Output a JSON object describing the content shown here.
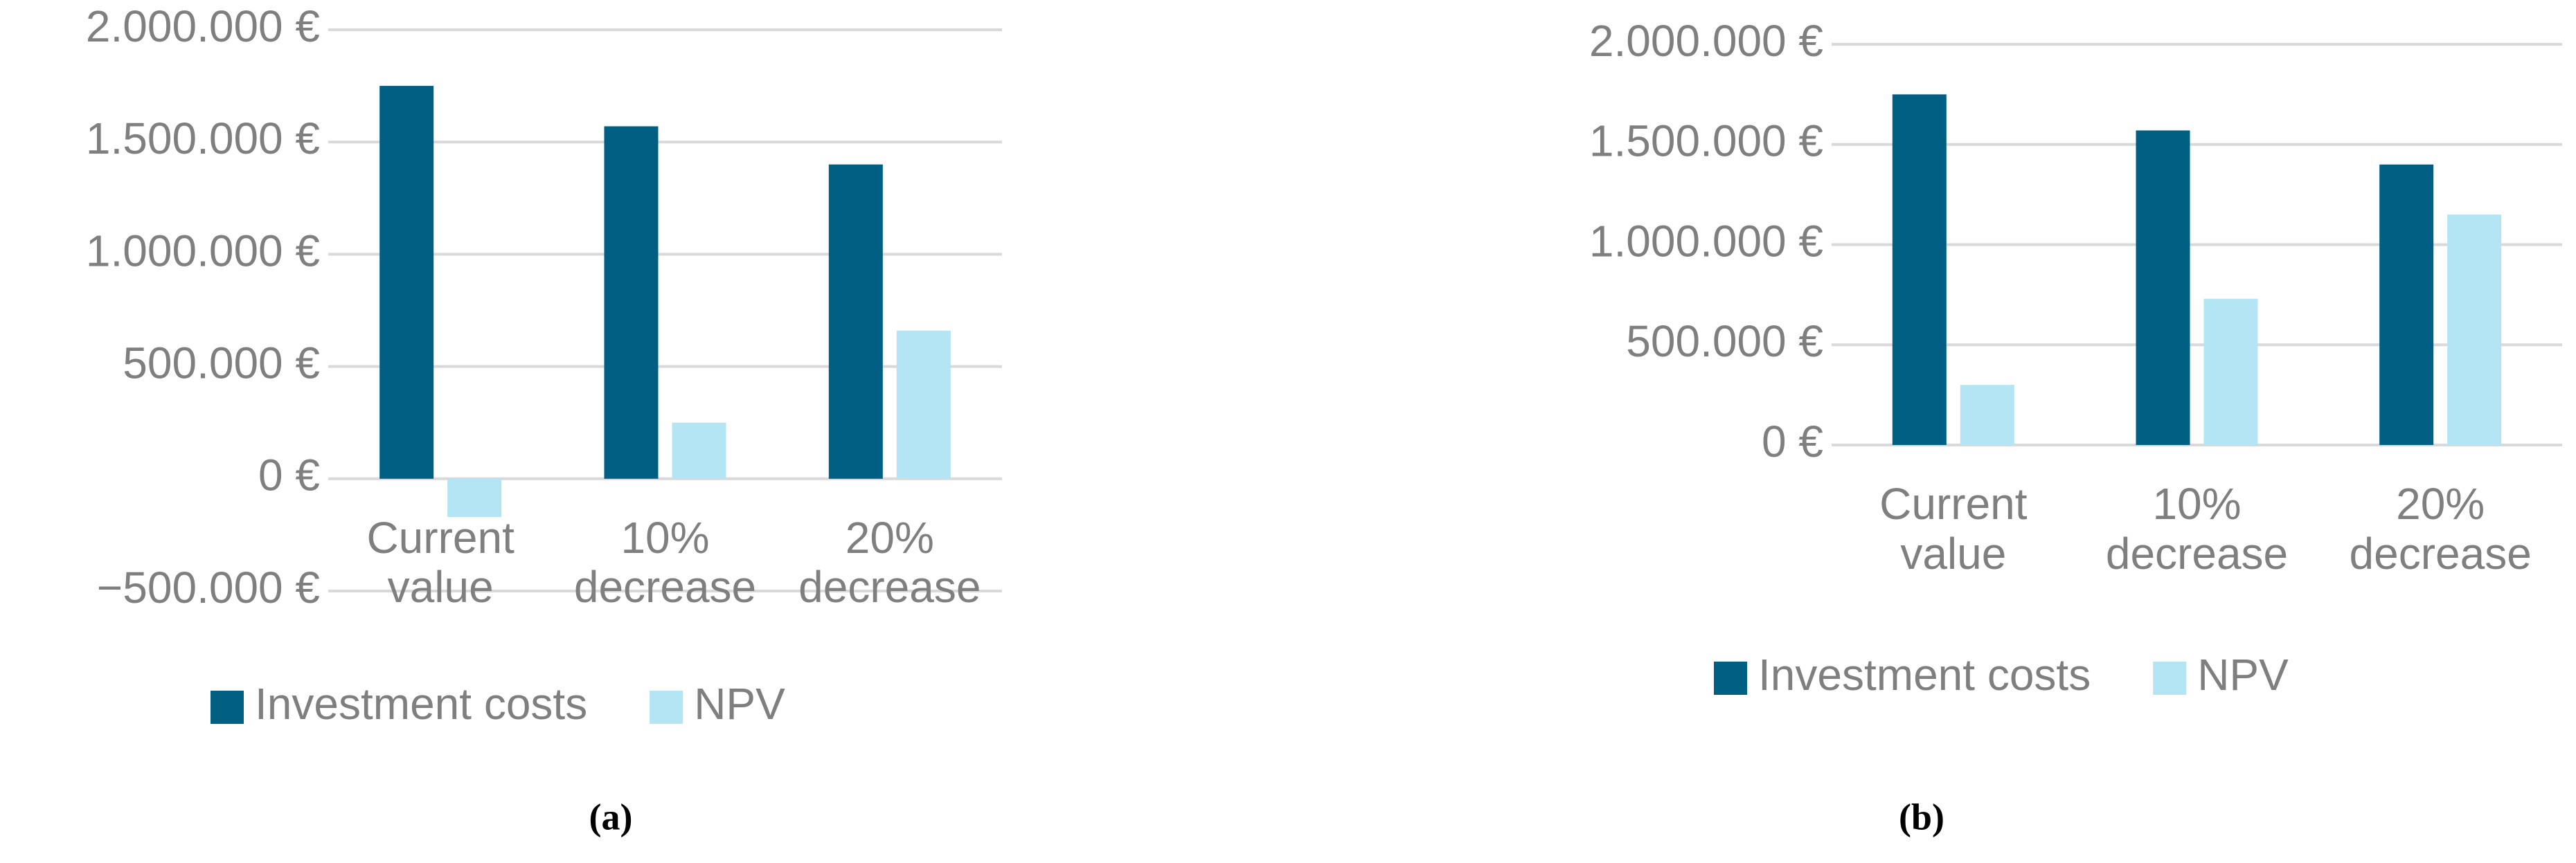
{
  "chart_data": [
    {
      "type": "bar",
      "caption": "(a)",
      "categories": [
        "Current value",
        "10% decrease",
        "20% decrease"
      ],
      "series": [
        {
          "name": "Investment costs",
          "color": "#005f83",
          "values": [
            1750000,
            1570000,
            1400000
          ]
        },
        {
          "name": "NPV",
          "color": "#b3e5f5",
          "values": [
            -170000,
            250000,
            660000
          ]
        }
      ],
      "ylim": [
        -500000,
        2000000
      ],
      "yticks": [
        {
          "value": -500000,
          "label": "−500.000 €"
        },
        {
          "value": 0,
          "label": "0 €"
        },
        {
          "value": 500000,
          "label": "500.000 €"
        },
        {
          "value": 1000000,
          "label": "1.000.000 €"
        },
        {
          "value": 1500000,
          "label": "1.500.000 €"
        },
        {
          "value": 2000000,
          "label": "2.000.000 €"
        }
      ],
      "grid": true
    },
    {
      "type": "bar",
      "caption": "(b)",
      "categories": [
        "Current value",
        "10% decrease",
        "20% decrease"
      ],
      "series": [
        {
          "name": "Investment costs",
          "color": "#005f83",
          "values": [
            1750000,
            1570000,
            1400000
          ]
        },
        {
          "name": "NPV",
          "color": "#b3e5f5",
          "values": [
            300000,
            730000,
            1150000
          ]
        }
      ],
      "ylim": [
        0,
        2000000
      ],
      "yticks": [
        {
          "value": 0,
          "label": "0 €"
        },
        {
          "value": 500000,
          "label": "500.000 €"
        },
        {
          "value": 1000000,
          "label": "1.000.000 €"
        },
        {
          "value": 1500000,
          "label": "1.500.000 €"
        },
        {
          "value": 2000000,
          "label": "2.000.000 €"
        }
      ],
      "grid": true
    }
  ]
}
